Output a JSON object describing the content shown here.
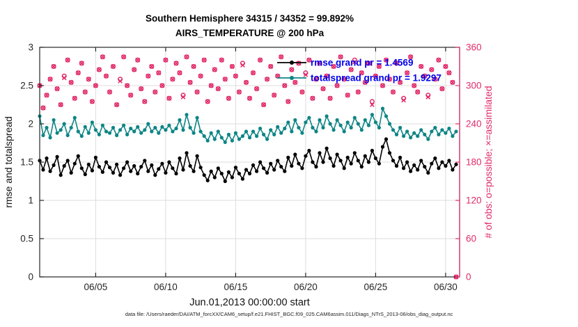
{
  "header": {
    "title_line1": "Southern Hemisphere 34315 / 34352 = 99.892%",
    "title_line2": "AIRS_TEMPERATURE @ 200 hPa"
  },
  "footer": {
    "caption": "data file: /Users/raeder/DAI/ATM_forcXX/CAM6_setup/f.e21.FHIST_BGC.f09_025.CAM6assim.011/Diags_NTrS_2013-06/obs_diag_output.nc"
  },
  "colors": {
    "crimson": "#e12a6b",
    "teal": "#0e8585",
    "black": "#000000",
    "legend_blue": "#0000ee",
    "grid": "#dcdcdc",
    "axis": "#262626"
  },
  "chart_data": {
    "type": "line",
    "title": [
      "Southern Hemisphere 34315 / 34352 = 99.892%",
      "AIRS_TEMPERATURE @ 200 hPa"
    ],
    "xlabel": "Jun.01,2013 00:00:00 start",
    "ylabel_left": "rmse and totalspread",
    "ylabel_right": "# of obs: o=possible; ×=assimilated",
    "grid": true,
    "legend_position": "upper-center-right",
    "legend": [
      {
        "label": "rmse grand pr = 1.4569",
        "color": "#000000"
      },
      {
        "label": "totalspread grand pr = 1.9297",
        "color": "#0e8585"
      }
    ],
    "x_start_day": 1,
    "x_step_days": 0.25,
    "x_axis": {
      "range_days": [
        1,
        31
      ],
      "ticks": [
        {
          "day": 5,
          "label": "06/05"
        },
        {
          "day": 10,
          "label": "06/10"
        },
        {
          "day": 15,
          "label": "06/15"
        },
        {
          "day": 20,
          "label": "06/20"
        },
        {
          "day": 25,
          "label": "06/25"
        },
        {
          "day": 30,
          "label": "06/30"
        }
      ]
    },
    "y_left": {
      "range": [
        0,
        3
      ],
      "ticks": [
        0,
        0.5,
        1,
        1.5,
        2,
        2.5,
        3
      ]
    },
    "y_right": {
      "range": [
        0,
        360
      ],
      "ticks": [
        0,
        60,
        120,
        180,
        240,
        300,
        360
      ]
    },
    "series": [
      {
        "name": "possible",
        "axis": "right",
        "color": "#e12a6b",
        "marker": "circle",
        "line": false,
        "values": [
          300,
          265,
          285,
          310,
          330,
          295,
          270,
          315,
          340,
          305,
          280,
          320,
          335,
          290,
          310,
          275,
          300,
          325,
          345,
          315,
          290,
          330,
          270,
          310,
          345,
          300,
          285,
          325,
          340,
          295,
          275,
          315,
          330,
          290,
          320,
          300,
          340,
          280,
          310,
          335,
          320,
          285,
          345,
          305,
          330,
          290,
          315,
          340,
          275,
          300,
          325,
          295,
          340,
          310,
          280,
          330,
          315,
          290,
          335,
          305,
          280,
          320,
          295,
          340,
          270,
          310,
          330,
          285,
          315,
          345,
          300,
          275,
          325,
          305,
          335,
          290,
          320,
          340,
          280,
          310,
          335,
          295,
          315,
          280,
          330,
          300,
          345,
          310,
          285,
          325,
          340,
          290,
          320,
          305,
          335,
          275,
          315,
          330,
          300,
          340,
          310,
          290,
          335,
          305,
          280,
          320,
          345,
          300,
          290,
          330,
          315,
          285,
          325,
          310,
          340,
          295,
          330,
          320,
          305,
          0
        ]
      },
      {
        "name": "assimilated",
        "axis": "right",
        "color": "#e12a6b",
        "marker": "x",
        "line": false,
        "values": [
          300,
          265,
          285,
          310,
          330,
          295,
          270,
          312,
          340,
          305,
          280,
          320,
          335,
          290,
          310,
          275,
          300,
          325,
          345,
          315,
          290,
          330,
          270,
          307,
          345,
          300,
          285,
          325,
          340,
          295,
          275,
          315,
          330,
          290,
          320,
          300,
          340,
          280,
          310,
          335,
          320,
          282,
          345,
          305,
          330,
          290,
          315,
          340,
          275,
          300,
          325,
          295,
          340,
          310,
          280,
          330,
          315,
          290,
          332,
          305,
          280,
          320,
          295,
          340,
          270,
          310,
          330,
          285,
          315,
          345,
          300,
          275,
          325,
          305,
          335,
          290,
          317,
          340,
          280,
          310,
          335,
          295,
          315,
          280,
          330,
          300,
          345,
          310,
          285,
          325,
          337,
          290,
          320,
          305,
          335,
          270,
          315,
          330,
          300,
          340,
          310,
          290,
          335,
          305,
          277,
          320,
          345,
          300,
          290,
          330,
          315,
          282,
          325,
          310,
          340,
          295,
          330,
          320,
          305,
          0
        ]
      },
      {
        "name": "rmse",
        "axis": "left",
        "color": "#000000",
        "marker": "dot",
        "line": true,
        "values": [
          1.52,
          1.4,
          1.55,
          1.38,
          1.46,
          1.57,
          1.33,
          1.45,
          1.52,
          1.36,
          1.48,
          1.58,
          1.42,
          1.34,
          1.47,
          1.39,
          1.56,
          1.44,
          1.37,
          1.5,
          1.43,
          1.36,
          1.47,
          1.33,
          1.42,
          1.5,
          1.38,
          1.45,
          1.35,
          1.44,
          1.52,
          1.38,
          1.46,
          1.33,
          1.41,
          1.48,
          1.36,
          1.5,
          1.42,
          1.35,
          1.55,
          1.4,
          1.62,
          1.45,
          1.38,
          1.58,
          1.43,
          1.33,
          1.26,
          1.38,
          1.3,
          1.42,
          1.35,
          1.25,
          1.37,
          1.3,
          1.43,
          1.35,
          1.28,
          1.4,
          1.35,
          1.46,
          1.38,
          1.5,
          1.42,
          1.36,
          1.48,
          1.4,
          1.52,
          1.44,
          1.38,
          1.56,
          1.45,
          1.6,
          1.48,
          1.42,
          1.58,
          1.65,
          1.5,
          1.44,
          1.62,
          1.5,
          1.68,
          1.55,
          1.45,
          1.6,
          1.52,
          1.42,
          1.56,
          1.48,
          1.62,
          1.52,
          1.44,
          1.58,
          1.5,
          1.65,
          1.55,
          1.48,
          1.7,
          1.8,
          1.62,
          1.52,
          1.45,
          1.56,
          1.42,
          1.5,
          1.38,
          1.46,
          1.4,
          1.52,
          1.44,
          1.36,
          1.48,
          1.55,
          1.42,
          1.5,
          1.45,
          1.52,
          1.4,
          1.47
        ]
      },
      {
        "name": "totalspread",
        "axis": "left",
        "color": "#0e8585",
        "marker": "dot",
        "line": true,
        "values": [
          2.1,
          1.85,
          1.95,
          1.82,
          2.05,
          1.88,
          1.92,
          2.0,
          1.85,
          1.95,
          2.08,
          1.9,
          1.84,
          1.96,
          1.88,
          2.02,
          1.92,
          1.86,
          1.98,
          1.9,
          1.88,
          1.95,
          1.85,
          1.92,
          1.98,
          1.86,
          1.94,
          1.9,
          1.96,
          1.88,
          1.92,
          2.0,
          1.9,
          1.95,
          1.88,
          1.96,
          1.92,
          1.98,
          1.9,
          1.94,
          2.05,
          1.92,
          2.12,
          1.95,
          1.88,
          2.08,
          1.9,
          1.84,
          1.78,
          1.88,
          1.8,
          1.9,
          1.82,
          1.76,
          1.86,
          1.78,
          1.88,
          1.8,
          1.84,
          1.9,
          1.82,
          1.9,
          1.84,
          1.94,
          1.86,
          1.8,
          1.92,
          1.86,
          1.96,
          1.88,
          1.94,
          2.02,
          1.9,
          2.05,
          1.95,
          1.88,
          2.02,
          2.08,
          1.95,
          1.9,
          2.05,
          1.95,
          2.1,
          2.0,
          1.92,
          2.05,
          1.98,
          1.9,
          2.02,
          1.95,
          2.08,
          2.0,
          1.92,
          2.05,
          1.98,
          2.12,
          2.02,
          1.95,
          2.2,
          2.1,
          2.0,
          1.92,
          1.86,
          1.95,
          1.84,
          1.9,
          1.82,
          1.88,
          1.84,
          1.92,
          1.86,
          1.8,
          1.9,
          1.95,
          1.86,
          1.92,
          1.88,
          1.94,
          1.84,
          1.9
        ]
      }
    ]
  }
}
